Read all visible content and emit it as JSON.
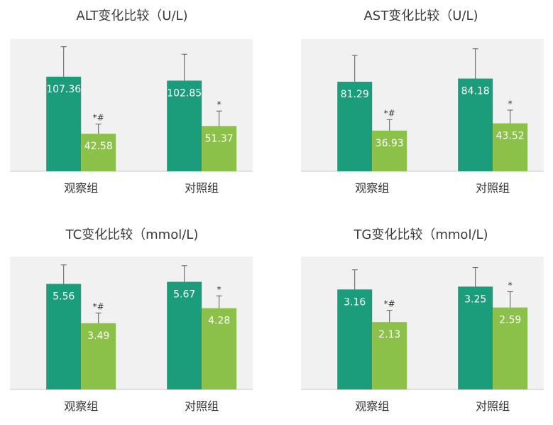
{
  "chart_data": [
    {
      "type": "bar",
      "title": "ALT变化比较（U/L)",
      "categories": [
        "观察组",
        "对照组"
      ],
      "series": [
        {
          "values": [
            107.36,
            102.85
          ],
          "color": "#1b9c7a"
        },
        {
          "values": [
            42.58,
            51.37
          ],
          "color": "#8bc149"
        }
      ],
      "error_bars": [
        [
          34,
          30
        ],
        [
          11,
          17
        ]
      ],
      "annotations": [
        [
          "",
          ""
        ],
        [
          "*#",
          "*"
        ]
      ],
      "ylim": [
        0,
        150
      ],
      "plot_background": "#f1f1f1"
    },
    {
      "type": "bar",
      "title": "AST变化比较（U/L)",
      "categories": [
        "观察组",
        "对照组"
      ],
      "series": [
        {
          "values": [
            81.29,
            84.18
          ],
          "color": "#1b9c7a"
        },
        {
          "values": [
            36.93,
            43.52
          ],
          "color": "#8bc149"
        }
      ],
      "error_bars": [
        [
          24,
          27
        ],
        [
          10,
          12
        ]
      ],
      "annotations": [
        [
          "",
          ""
        ],
        [
          "*#",
          "*"
        ]
      ],
      "ylim": [
        0,
        120
      ],
      "plot_background": "#f1f1f1"
    },
    {
      "type": "bar",
      "title": "TC变化比较（mmol/L)",
      "categories": [
        "观察组",
        "对照组"
      ],
      "series": [
        {
          "values": [
            5.56,
            5.67
          ],
          "color": "#1b9c7a"
        },
        {
          "values": [
            3.49,
            4.28
          ],
          "color": "#8bc149"
        }
      ],
      "error_bars": [
        [
          1.0,
          0.85
        ],
        [
          0.54,
          0.65
        ]
      ],
      "annotations": [
        [
          "",
          ""
        ],
        [
          "*#",
          "*"
        ]
      ],
      "ylim": [
        0,
        7
      ],
      "plot_background": "#f1f1f1"
    },
    {
      "type": "bar",
      "title": "TG变化比较（mmol/L)",
      "categories": [
        "观察组",
        "对照组"
      ],
      "series": [
        {
          "values": [
            3.16,
            3.25
          ],
          "color": "#1b9c7a"
        },
        {
          "values": [
            2.13,
            2.59
          ],
          "color": "#8bc149"
        }
      ],
      "error_bars": [
        [
          0.62,
          0.6
        ],
        [
          0.37,
          0.5
        ]
      ],
      "annotations": [
        [
          "",
          ""
        ],
        [
          "*#",
          "*"
        ]
      ],
      "ylim": [
        0,
        4.2
      ],
      "plot_background": "#f1f1f1"
    }
  ]
}
